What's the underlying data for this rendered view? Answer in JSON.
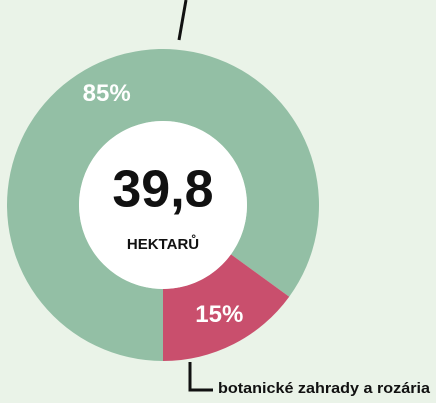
{
  "chart_data": {
    "type": "donut",
    "categories": [
      null,
      "botanické zahrady a rozária"
    ],
    "values": [
      85,
      15
    ],
    "value_labels": [
      "85%",
      "15%"
    ],
    "colors": [
      "#93bfa5",
      "#c94f6d"
    ],
    "center_value": "39,8",
    "center_label": "HEKTARŮ"
  }
}
